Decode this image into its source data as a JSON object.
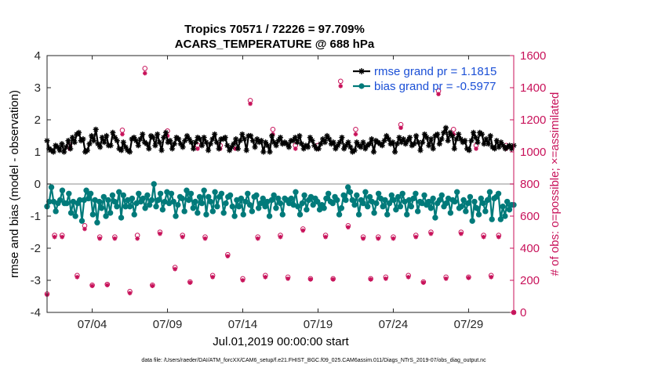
{
  "chart_data": {
    "type": "line",
    "title": "Tropics 70571 / 72226 = 97.709%",
    "subtitle": "ACARS_TEMPERATURE @ 688 hPa",
    "xlabel": "Jul.01,2019 00:00:00 start",
    "ylabel_left": "rmse and bias (model - observation)",
    "ylabel_right": "# of obs: o=possible; ×=assimilated",
    "footnote": "data file: /Users/raeder/DAI/ATM_forcXX/CAM6_setup/f.e21.FHIST_BGC.f09_025.CAM6assim.011/Diags_NTrS_2019-07/obs_diag_output.nc",
    "x_ticks": [
      "07/04",
      "07/09",
      "07/14",
      "07/19",
      "07/24",
      "07/29"
    ],
    "x_tick_days": [
      4,
      9,
      14,
      19,
      24,
      29
    ],
    "xlim_days": [
      1,
      32
    ],
    "ylim_left": [
      -4,
      4
    ],
    "yticks_left": [
      "4",
      "3",
      "2",
      "1",
      "0",
      "-1",
      "-2",
      "-3",
      "-4"
    ],
    "ylim_right": [
      0,
      1600
    ],
    "yticks_right": [
      "1600",
      "1400",
      "1200",
      "1000",
      "800",
      "600",
      "400",
      "200",
      "0"
    ],
    "zero_line": 0,
    "series": [
      {
        "name": "rmse grand pr = 1.1815",
        "color": "#000000",
        "marker": "star",
        "values": [
          1.35,
          1.1,
          1.05,
          1.0,
          1.2,
          1.15,
          1.05,
          1.25,
          1.0,
          1.15,
          1.35,
          1.1,
          1.45,
          1.3,
          1.55,
          1.6,
          1.35,
          1.4,
          1.0,
          1.05,
          1.25,
          1.5,
          1.35,
          1.7,
          1.25,
          1.15,
          1.45,
          1.3,
          1.5,
          1.2,
          1.2,
          1.6,
          1.45,
          1.35,
          1.1,
          1.05,
          1.3,
          1.15,
          1.05,
          1.0,
          1.4,
          1.45,
          1.35,
          1.2,
          1.4,
          1.55,
          1.3,
          1.25,
          1.1,
          1.5,
          1.45,
          1.2,
          1.55,
          1.3,
          1.05,
          1.45,
          1.6,
          1.3,
          1.35,
          1.1,
          1.25,
          1.45,
          1.4,
          1.25,
          1.15,
          1.35,
          1.5,
          1.4,
          1.3,
          1.1,
          1.3,
          1.45,
          1.4,
          1.2,
          1.45,
          1.3,
          1.05,
          1.25,
          1.4,
          1.55,
          1.3,
          1.1,
          1.4,
          1.4,
          1.45,
          1.2,
          1.05,
          1.15,
          1.25,
          1.4,
          1.1,
          1.35,
          1.55,
          1.4,
          1.05,
          1.5,
          1.5,
          1.35,
          1.15,
          1.4,
          1.3,
          1.35,
          1.0,
          1.3,
          1.2,
          1.0,
          1.5,
          1.3,
          1.2,
          1.35,
          1.45,
          1.25,
          1.3,
          1.25,
          1.15,
          1.35,
          1.35,
          1.45,
          1.3,
          1.5,
          1.25,
          1.1,
          1.2,
          1.15,
          1.45,
          1.35,
          1.2,
          1.1,
          1.1,
          1.25,
          1.4,
          1.3,
          1.5,
          1.4,
          1.25,
          1.3,
          1.1,
          1.2,
          1.3,
          1.45,
          1.1,
          1.2,
          1.3,
          1.15,
          1.0,
          1.05,
          1.3,
          1.2,
          1.15,
          1.3,
          1.1,
          1.2,
          1.25,
          1.4,
          1.0,
          1.35,
          1.3,
          1.25,
          1.2,
          1.35,
          1.5,
          1.4,
          1.25,
          1.3,
          1.0,
          1.25,
          1.45,
          1.3,
          1.4,
          1.25,
          1.35,
          1.45,
          1.2,
          1.25,
          1.5,
          1.3,
          1.05,
          1.3,
          1.55,
          1.45,
          1.2,
          1.4,
          1.1,
          1.5,
          1.55,
          1.25,
          1.4,
          1.6,
          1.75,
          1.35,
          1.6,
          1.5,
          1.1,
          1.4,
          1.55,
          1.4,
          1.3,
          1.35,
          1.1,
          1.05,
          1.35,
          1.6,
          1.45,
          1.3,
          1.6,
          1.55,
          1.25,
          1.4,
          1.25,
          1.5,
          1.15,
          1.1,
          1.35,
          1.15,
          1.3,
          1.2,
          1.1,
          1.15,
          1.2,
          1.1,
          1.2
        ]
      },
      {
        "name": "bias grand pr = -0.5977",
        "color": "#007a7a",
        "marker": "circle",
        "values": [
          -0.7,
          -0.55,
          -0.1,
          -0.55,
          -0.85,
          -0.6,
          -0.5,
          -0.2,
          -0.6,
          -0.6,
          -0.3,
          -0.9,
          -0.55,
          -1.0,
          -0.6,
          -0.5,
          -1.15,
          -0.5,
          -0.2,
          -0.45,
          -0.3,
          -0.95,
          -0.5,
          -1.2,
          -0.55,
          -0.75,
          -0.4,
          -1.0,
          -0.5,
          -0.9,
          -0.35,
          -0.55,
          -0.7,
          -0.25,
          -1.05,
          -0.35,
          -0.7,
          -0.5,
          -0.7,
          -0.45,
          -0.95,
          -0.6,
          -0.3,
          -0.55,
          -0.45,
          -0.75,
          -0.35,
          -0.65,
          -0.5,
          -0.0,
          -0.7,
          -0.5,
          -0.3,
          -0.8,
          -0.55,
          -0.25,
          -0.6,
          -0.3,
          -0.55,
          -1.0,
          -0.65,
          -0.4,
          -0.45,
          -0.85,
          -0.2,
          -0.5,
          -0.3,
          -0.75,
          -0.55,
          -0.9,
          -0.4,
          -0.6,
          -0.2,
          -0.95,
          -0.4,
          -0.55,
          -0.85,
          -0.25,
          -0.7,
          -0.4,
          -0.3,
          -0.9,
          -0.6,
          -0.4,
          -0.35,
          -0.7,
          -1.0,
          -0.5,
          -0.7,
          -0.45,
          -0.95,
          -0.55,
          -0.3,
          -0.65,
          -0.85,
          -0.4,
          -0.35,
          -0.75,
          -0.6,
          -0.45,
          -0.7,
          -0.55,
          -1.0,
          -0.5,
          -0.35,
          -0.75,
          -0.45,
          -0.6,
          -0.95,
          -0.45,
          -0.5,
          -0.6,
          -0.45,
          -0.65,
          -0.25,
          -0.7,
          -0.95,
          -0.6,
          -0.35,
          -0.8,
          -0.5,
          -0.4,
          -0.65,
          -0.45,
          -0.55,
          -0.8,
          -0.65,
          -0.75,
          -0.45,
          -0.3,
          -0.55,
          -0.6,
          -0.4,
          -0.5,
          -0.95,
          -0.75,
          -0.35,
          -0.5,
          -0.1,
          -0.25,
          -0.5,
          -0.65,
          -0.35,
          -0.95,
          -0.5,
          -0.6,
          -0.25,
          -0.7,
          -0.4,
          -0.55,
          -0.9,
          -0.6,
          -0.3,
          -0.45,
          -0.7,
          -0.5,
          -0.95,
          -0.6,
          -0.35,
          -0.5,
          -0.8,
          -0.4,
          -0.7,
          -0.3,
          -0.55,
          -0.95,
          -0.5,
          -0.7,
          -0.45,
          -0.3,
          -0.85,
          -0.55,
          -0.6,
          -0.35,
          -0.65,
          -0.55,
          -0.75,
          -0.45,
          -1.05,
          -0.6,
          -0.5,
          -0.35,
          -0.7,
          -0.6,
          -0.45,
          -0.9,
          -0.5,
          -0.55,
          -0.25,
          -0.75,
          -0.7,
          -0.5,
          -0.85,
          -0.6,
          -0.4,
          -1.15,
          -0.55,
          -0.75,
          -0.95,
          -0.45,
          -0.6,
          -0.85,
          -0.5,
          -0.25,
          -1.1,
          -0.45,
          -0.4,
          -0.3,
          -1.1,
          -0.7,
          -1.0,
          -0.55,
          -0.8,
          -0.65,
          -0.65
        ]
      }
    ],
    "obs_possible": [
      {
        "x": 1.0,
        "y": 115
      },
      {
        "x": 1.5,
        "y": 480
      },
      {
        "x": 2.0,
        "y": 480
      },
      {
        "x": 2.5,
        "y": 1040
      },
      {
        "x": 3.0,
        "y": 230
      },
      {
        "x": 3.5,
        "y": 540
      },
      {
        "x": 4.0,
        "y": 170
      },
      {
        "x": 4.5,
        "y": 470
      },
      {
        "x": 5.0,
        "y": 175
      },
      {
        "x": 5.5,
        "y": 470
      },
      {
        "x": 6.0,
        "y": 1135
      },
      {
        "x": 6.5,
        "y": 130
      },
      {
        "x": 7.0,
        "y": 480
      },
      {
        "x": 7.5,
        "y": 1520
      },
      {
        "x": 8.0,
        "y": 170
      },
      {
        "x": 8.5,
        "y": 500
      },
      {
        "x": 9.0,
        "y": 1130
      },
      {
        "x": 9.5,
        "y": 280
      },
      {
        "x": 10.0,
        "y": 480
      },
      {
        "x": 10.5,
        "y": 190
      },
      {
        "x": 11.0,
        "y": 1040
      },
      {
        "x": 11.5,
        "y": 470
      },
      {
        "x": 12.0,
        "y": 230
      },
      {
        "x": 12.5,
        "y": 1040
      },
      {
        "x": 13.0,
        "y": 360
      },
      {
        "x": 13.5,
        "y": 1040
      },
      {
        "x": 14.0,
        "y": 210
      },
      {
        "x": 14.5,
        "y": 1320
      },
      {
        "x": 15.0,
        "y": 470
      },
      {
        "x": 15.5,
        "y": 230
      },
      {
        "x": 16.0,
        "y": 1140
      },
      {
        "x": 16.5,
        "y": 480
      },
      {
        "x": 17.0,
        "y": 220
      },
      {
        "x": 17.5,
        "y": 1040
      },
      {
        "x": 18.0,
        "y": 520
      },
      {
        "x": 18.5,
        "y": 210
      },
      {
        "x": 19.0,
        "y": 1040
      },
      {
        "x": 19.5,
        "y": 480
      },
      {
        "x": 20.0,
        "y": 210
      },
      {
        "x": 20.5,
        "y": 1440
      },
      {
        "x": 21.0,
        "y": 540
      },
      {
        "x": 21.5,
        "y": 1140
      },
      {
        "x": 22.0,
        "y": 470
      },
      {
        "x": 22.5,
        "y": 210
      },
      {
        "x": 23.0,
        "y": 470
      },
      {
        "x": 23.5,
        "y": 220
      },
      {
        "x": 24.0,
        "y": 470
      },
      {
        "x": 24.5,
        "y": 1170
      },
      {
        "x": 25.0,
        "y": 230
      },
      {
        "x": 25.5,
        "y": 480
      },
      {
        "x": 26.0,
        "y": 190
      },
      {
        "x": 26.5,
        "y": 500
      },
      {
        "x": 27.0,
        "y": 1380
      },
      {
        "x": 27.5,
        "y": 220
      },
      {
        "x": 28.0,
        "y": 1140
      },
      {
        "x": 28.5,
        "y": 500
      },
      {
        "x": 29.0,
        "y": 220
      },
      {
        "x": 29.5,
        "y": 1040
      },
      {
        "x": 30.0,
        "y": 480
      },
      {
        "x": 30.5,
        "y": 230
      },
      {
        "x": 31.0,
        "y": 480
      },
      {
        "x": 31.5,
        "y": 1040
      },
      {
        "x": 32.0,
        "y": 0
      }
    ],
    "obs_assimilated": [
      {
        "x": 1.0,
        "y": 110
      },
      {
        "x": 1.5,
        "y": 470
      },
      {
        "x": 2.0,
        "y": 470
      },
      {
        "x": 2.5,
        "y": 1020
      },
      {
        "x": 3.0,
        "y": 220
      },
      {
        "x": 3.5,
        "y": 520
      },
      {
        "x": 4.0,
        "y": 165
      },
      {
        "x": 4.5,
        "y": 460
      },
      {
        "x": 5.0,
        "y": 170
      },
      {
        "x": 5.5,
        "y": 460
      },
      {
        "x": 6.0,
        "y": 1110
      },
      {
        "x": 6.5,
        "y": 120
      },
      {
        "x": 7.0,
        "y": 460
      },
      {
        "x": 7.5,
        "y": 1490
      },
      {
        "x": 8.0,
        "y": 165
      },
      {
        "x": 8.5,
        "y": 490
      },
      {
        "x": 9.0,
        "y": 1100
      },
      {
        "x": 9.5,
        "y": 270
      },
      {
        "x": 10.0,
        "y": 470
      },
      {
        "x": 10.5,
        "y": 185
      },
      {
        "x": 11.0,
        "y": 1020
      },
      {
        "x": 11.5,
        "y": 460
      },
      {
        "x": 12.0,
        "y": 220
      },
      {
        "x": 12.5,
        "y": 1020
      },
      {
        "x": 13.0,
        "y": 350
      },
      {
        "x": 13.5,
        "y": 1020
      },
      {
        "x": 14.0,
        "y": 200
      },
      {
        "x": 14.5,
        "y": 1300
      },
      {
        "x": 15.0,
        "y": 460
      },
      {
        "x": 15.5,
        "y": 220
      },
      {
        "x": 16.0,
        "y": 1110
      },
      {
        "x": 16.5,
        "y": 470
      },
      {
        "x": 17.0,
        "y": 210
      },
      {
        "x": 17.5,
        "y": 1020
      },
      {
        "x": 18.0,
        "y": 510
      },
      {
        "x": 18.5,
        "y": 205
      },
      {
        "x": 19.0,
        "y": 1020
      },
      {
        "x": 19.5,
        "y": 470
      },
      {
        "x": 20.0,
        "y": 205
      },
      {
        "x": 20.5,
        "y": 1410
      },
      {
        "x": 21.0,
        "y": 530
      },
      {
        "x": 21.5,
        "y": 1110
      },
      {
        "x": 22.0,
        "y": 460
      },
      {
        "x": 22.5,
        "y": 205
      },
      {
        "x": 23.0,
        "y": 460
      },
      {
        "x": 23.5,
        "y": 210
      },
      {
        "x": 24.0,
        "y": 460
      },
      {
        "x": 24.5,
        "y": 1150
      },
      {
        "x": 25.0,
        "y": 220
      },
      {
        "x": 25.5,
        "y": 470
      },
      {
        "x": 26.0,
        "y": 185
      },
      {
        "x": 26.5,
        "y": 490
      },
      {
        "x": 27.0,
        "y": 1360
      },
      {
        "x": 27.5,
        "y": 210
      },
      {
        "x": 28.0,
        "y": 1110
      },
      {
        "x": 28.5,
        "y": 490
      },
      {
        "x": 29.0,
        "y": 215
      },
      {
        "x": 29.5,
        "y": 1020
      },
      {
        "x": 30.0,
        "y": 470
      },
      {
        "x": 30.5,
        "y": 220
      },
      {
        "x": 31.0,
        "y": 470
      },
      {
        "x": 31.5,
        "y": 1020
      },
      {
        "x": 32.0,
        "y": 0
      }
    ],
    "colors": {
      "rmse": "#000000",
      "bias": "#007a7a",
      "obs": "#c8125a",
      "right_axis": "#c8125a",
      "legend_text": "#1a4fd6",
      "zero_line": "#b4b4b4"
    },
    "legend_position": "top-right",
    "grid": false
  }
}
